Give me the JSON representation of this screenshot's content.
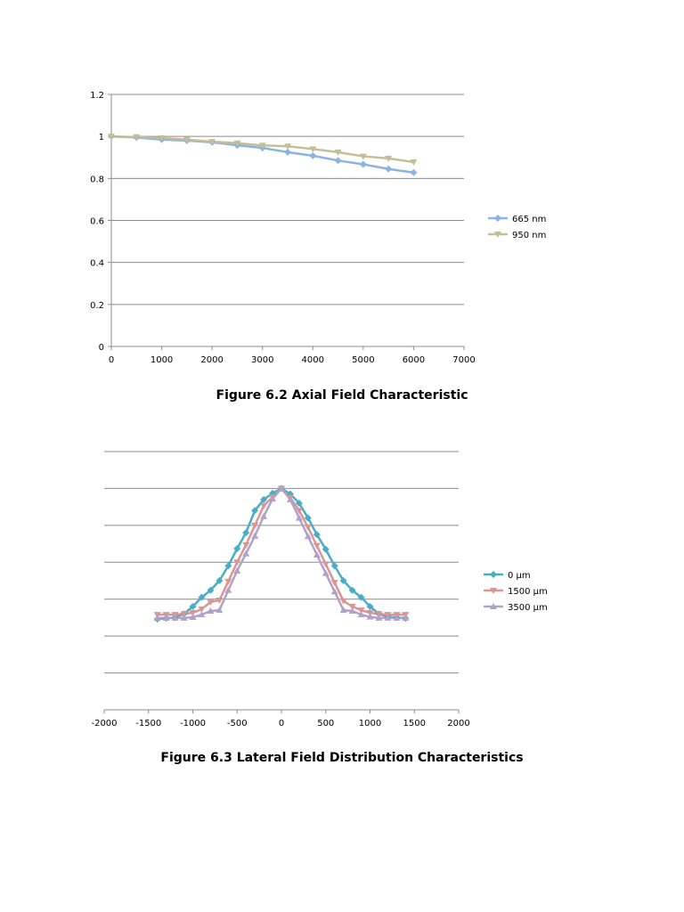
{
  "chart_data": [
    {
      "type": "line",
      "title": "",
      "caption": "Figure 6.2 Axial Field Characteristic",
      "xlabel": "",
      "ylabel": "",
      "xlim": [
        0,
        7000
      ],
      "ylim": [
        0,
        1.2
      ],
      "xticks": [
        "0",
        "1000",
        "2000",
        "3000",
        "4000",
        "5000",
        "6000",
        "7000"
      ],
      "yticks": [
        "0",
        "0.2",
        "0.4",
        "0.6",
        "0.8",
        "1",
        "1.2"
      ],
      "grid": true,
      "legend": "right",
      "x": [
        0,
        500,
        1000,
        1500,
        2000,
        2500,
        3000,
        3500,
        4000,
        4500,
        5000,
        5500,
        6000
      ],
      "series": [
        {
          "name": "665 nm",
          "color": "#8db3e2",
          "marker": "diamond",
          "values": [
            1,
            0.995,
            0.985,
            0.98,
            0.972,
            0.958,
            0.945,
            0.925,
            0.908,
            0.885,
            0.867,
            0.845,
            0.828
          ]
        },
        {
          "name": "950 nm",
          "color": "#c4bd97",
          "marker": "triangle-down",
          "values": [
            1,
            0.997,
            0.993,
            0.985,
            0.975,
            0.968,
            0.957,
            0.953,
            0.94,
            0.925,
            0.905,
            0.895,
            0.878
          ]
        }
      ]
    },
    {
      "type": "line",
      "title": "",
      "caption": "Figure 6.3 Lateral Field Distribution Characteristics",
      "xlabel": "",
      "ylabel": "",
      "xlim": [
        -2000,
        2000
      ],
      "ylim": [
        0,
        7
      ],
      "xticks": [
        "-2000",
        "-1500",
        "-1000",
        "-500",
        "0",
        "500",
        "1000",
        "1500",
        "2000"
      ],
      "yticks": [],
      "grid": true,
      "legend": "right",
      "x": [
        -1400,
        -1300,
        -1200,
        -1100,
        -1000,
        -900,
        -800,
        -700,
        -600,
        -500,
        -400,
        -300,
        -200,
        -100,
        0,
        100,
        200,
        300,
        400,
        500,
        600,
        700,
        800,
        900,
        1000,
        1100,
        1200,
        1300,
        1400
      ],
      "series": [
        {
          "name": "0 µm",
          "color": "#4bacc6",
          "marker": "diamond",
          "values": [
            2.46,
            2.48,
            2.5,
            2.6,
            2.8,
            3.05,
            3.24,
            3.5,
            3.9,
            4.37,
            4.8,
            5.4,
            5.7,
            5.87,
            6.0,
            5.85,
            5.6,
            5.2,
            4.75,
            4.35,
            3.9,
            3.5,
            3.24,
            3.05,
            2.8,
            2.6,
            2.52,
            2.5,
            2.48
          ]
        },
        {
          "name": "1500 µm",
          "color": "#d99694",
          "marker": "triangle-down",
          "values": [
            2.58,
            2.58,
            2.58,
            2.6,
            2.63,
            2.73,
            2.92,
            2.97,
            3.48,
            4.0,
            4.47,
            5.0,
            5.53,
            5.77,
            6.0,
            5.75,
            5.4,
            4.95,
            4.45,
            3.95,
            3.45,
            2.95,
            2.8,
            2.7,
            2.63,
            2.6,
            2.58,
            2.58,
            2.58
          ]
        },
        {
          "name": "3500 µm",
          "color": "#b3a2c7",
          "marker": "triangle-up",
          "values": [
            2.49,
            2.49,
            2.49,
            2.49,
            2.51,
            2.58,
            2.68,
            2.7,
            3.24,
            3.77,
            4.23,
            4.71,
            5.24,
            5.72,
            6.0,
            5.7,
            5.2,
            4.7,
            4.2,
            3.7,
            3.2,
            2.7,
            2.68,
            2.58,
            2.52,
            2.49,
            2.49,
            2.49,
            2.49
          ]
        }
      ]
    }
  ]
}
